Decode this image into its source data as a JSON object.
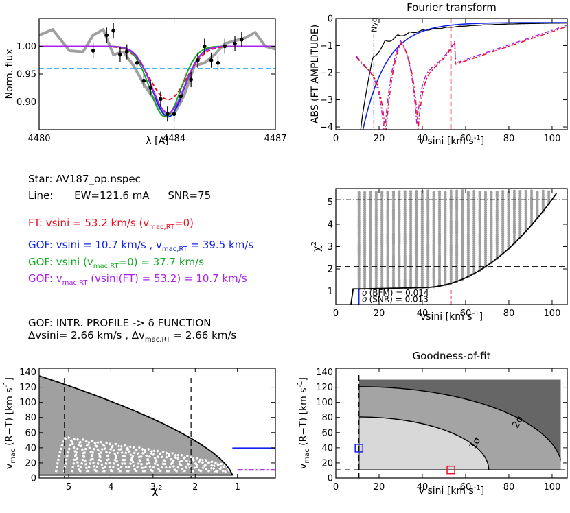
{
  "colors": {
    "red": "#ee1122",
    "blue": "#1122ee",
    "green": "#11aa22",
    "purple": "#aa22ee",
    "cyan": "#22a8ff",
    "gray": "#a0a0a0",
    "black": "#000000"
  },
  "info": {
    "star": "Star: AV187_op.nspec",
    "line_label": "Line:",
    "line_ew": "EW=121.6 mA",
    "line_snr": "SNR=75",
    "ft": "FT:  vsini = 53.2 km/s  (v",
    "ft_sub": "mac,RT",
    "ft_end": "=0)",
    "gof1_a": "GOF: vsini = 10.7 km/s , v",
    "gof1_sub": "mac,RT",
    "gof1_b": " = 39.5 km/s",
    "gof2_a": "GOF: vsini (v",
    "gof2_sub": "mac,RT",
    "gof2_b": "=0) = 37.7 km/s",
    "gof3_a": "GOF: v",
    "gof3_sub": "mac,RT",
    "gof3_b": " (vsini(FT) = 53.2) = 10.7 km/s",
    "intr": "GOF: INTR. PROFILE -> δ FUNCTION",
    "unc_a": "Δvsini= 2.66 km/s ,  Δv",
    "unc_sub": "mac,RT",
    "unc_b": " = 2.66 km/s"
  },
  "chart_data": [
    {
      "id": "profile",
      "type": "line",
      "title": "",
      "xlabel": "λ [A]",
      "ylabel": "Norm. flux",
      "xlim": [
        4480,
        4487
      ],
      "ylim": [
        0.85,
        1.05
      ],
      "x_ticks": [
        4480,
        4484,
        4487
      ],
      "x_ticklabels": [
        "4480",
        "4484",
        "4487"
      ],
      "y_ticks": [
        0.9,
        0.95,
        1.0
      ],
      "y_ticklabels": [
        "0.90",
        "0.95",
        "1.00"
      ],
      "hline": 0.96,
      "observed_gray": {
        "x": [
          4480.0,
          4480.4,
          4480.9,
          4481.3,
          4481.6,
          4481.9,
          4482.2,
          4482.5,
          4482.8,
          4483.1,
          4483.4,
          4483.7,
          4484.0,
          4484.3,
          4484.6,
          4484.9,
          4485.2,
          4485.5,
          4485.8,
          4486.1,
          4486.4,
          4486.7,
          4487.0
        ],
        "y": [
          1.02,
          1.03,
          0.992,
          0.99,
          1.02,
          1.03,
          0.985,
          0.99,
          0.965,
          0.932,
          0.905,
          0.878,
          0.878,
          0.912,
          0.965,
          0.97,
          0.985,
          1.005,
          1.01,
          1.015,
          1.025,
          1.0,
          0.995
        ]
      },
      "data_points": {
        "x": [
          4481.6,
          4482.0,
          4482.2,
          4482.4,
          4482.6,
          4482.9,
          4483.1,
          4483.3,
          4483.6,
          4483.8,
          4484.0,
          4484.2,
          4484.5,
          4484.7,
          4484.9,
          4485.1,
          4485.3,
          4485.5,
          4485.8,
          4486.0
        ],
        "y": [
          0.992,
          1.02,
          1.028,
          0.985,
          0.99,
          0.97,
          0.938,
          0.925,
          0.905,
          0.878,
          0.878,
          0.91,
          0.94,
          0.975,
          1.0,
          0.975,
          0.97,
          1.0,
          1.005,
          1.012
        ]
      },
      "models": [
        {
          "name": "FT",
          "color": "#ee1122",
          "dash": "6,3",
          "center": 4483.82,
          "depth": 0.096,
          "halfwidth": 0.97
        },
        {
          "name": "GOF",
          "color": "#1122ee",
          "dash": "",
          "center": 4483.82,
          "depth": 0.127,
          "halfwidth": 0.84
        },
        {
          "name": "GOF vmac=0",
          "color": "#11aa22",
          "dash": "",
          "center": 4483.74,
          "depth": 0.127,
          "halfwidth": 0.82
        },
        {
          "name": "GOF vmac(FT)",
          "color": "#aa22ee",
          "dash": "",
          "center": 4483.82,
          "depth": 0.12,
          "halfwidth": 0.86
        }
      ]
    },
    {
      "id": "fourier",
      "type": "line",
      "title": "Fourier transform",
      "xlabel": "v sini [km s",
      "xlabel_sup": "-1",
      "xlabel_end": "]",
      "ylabel": "ABS (FT AMPLITUDE)",
      "xlim": [
        0,
        107
      ],
      "ylim": [
        -4.1,
        0
      ],
      "x_ticks": [
        0,
        20,
        40,
        60,
        80,
        100
      ],
      "x_ticklabels": [
        "0",
        "20",
        "40",
        "60",
        "80",
        "100"
      ],
      "y_ticks": [
        0,
        -1,
        -2,
        -3,
        -4
      ],
      "y_ticklabels": [
        "0",
        "−1",
        "−2",
        "−3",
        "−4"
      ],
      "nyq_label": "Nyq.",
      "nyq_x": 17.6,
      "ft_vsini": 53.2
    },
    {
      "id": "chi2_vsini",
      "type": "scatter",
      "title": "",
      "xlabel": "vsini [km s",
      "xlabel_sup": "-1",
      "xlabel_end": "]",
      "ylabel": "χ",
      "ylabel_sup": "2",
      "xlim": [
        0,
        107
      ],
      "ylim": [
        0.4,
        5.6
      ],
      "x_ticks": [
        0,
        20,
        40,
        60,
        80,
        100
      ],
      "x_ticklabels": [
        "0",
        "20",
        "40",
        "60",
        "80",
        "100"
      ],
      "y_ticks": [
        1,
        2,
        3,
        4,
        5
      ],
      "y_ticklabels": [
        "1",
        "2",
        "3",
        "4",
        "5"
      ],
      "hlines": [
        2.1,
        5.1
      ],
      "ft_vsini": 53.2,
      "legend": [
        {
          "sym": "σ",
          "text": "(BFM) = 0.014"
        },
        {
          "sym": "σ",
          "text": "(SNR) = 0.013"
        }
      ]
    },
    {
      "id": "chi2_vmac",
      "type": "scatter",
      "title": "",
      "xlabel": "χ",
      "xlabel_sup": "2",
      "ylabel": "v",
      "ylabel_sub": "mac",
      "ylabel_end": " (R−T)  [km s",
      "ylabel_sup": "-1",
      "ylabel_close": "]",
      "xlim": [
        5.7,
        0.1
      ],
      "ylim": [
        0,
        145
      ],
      "x_ticks": [
        5,
        4,
        3,
        2,
        1
      ],
      "x_ticklabels": [
        "5",
        "4",
        "3",
        "2",
        "1"
      ],
      "y_ticks": [
        0,
        20,
        40,
        60,
        80,
        100,
        120,
        140
      ],
      "y_ticklabels": [
        "0",
        "20",
        "40",
        "60",
        "80",
        "100",
        "120",
        "140"
      ],
      "vlines": [
        5.1,
        2.1
      ],
      "blue_level": 39.5,
      "purple_level": 10.7
    },
    {
      "id": "gof",
      "type": "heatmap",
      "title": "Goodness-of-fit",
      "xlabel": "v sini [km s",
      "xlabel_sup": "-1",
      "xlabel_end": "]",
      "ylabel": "v",
      "ylabel_sub": "mac",
      "ylabel_end": " (R−T)  [km s",
      "ylabel_sup": "-1",
      "ylabel_close": "]",
      "xlim": [
        0,
        107
      ],
      "ylim": [
        0,
        145
      ],
      "x_ticks": [
        0,
        20,
        40,
        60,
        80,
        100
      ],
      "x_ticklabels": [
        "0",
        "20",
        "40",
        "60",
        "80",
        "100"
      ],
      "y_ticks": [
        0,
        20,
        40,
        60,
        80,
        100,
        120,
        140
      ],
      "y_ticklabels": [
        "0",
        "20",
        "40",
        "60",
        "80",
        "100",
        "120",
        "140"
      ],
      "grid_xrange": [
        10.7,
        104
      ],
      "grid_yrange": [
        10.7,
        130
      ],
      "contour1": {
        "label": "1σ",
        "rx": 60,
        "ry": 70
      },
      "contour2": {
        "label": "2σ",
        "rx": 94,
        "ry": 110
      },
      "gof_point": {
        "vsini": 10.7,
        "vmac": 39.5
      },
      "ft_point": {
        "vsini": 53.2,
        "vmac": 10.7
      },
      "dashed_vsini": 10.7,
      "dashed_vmac": 10.7
    }
  ]
}
